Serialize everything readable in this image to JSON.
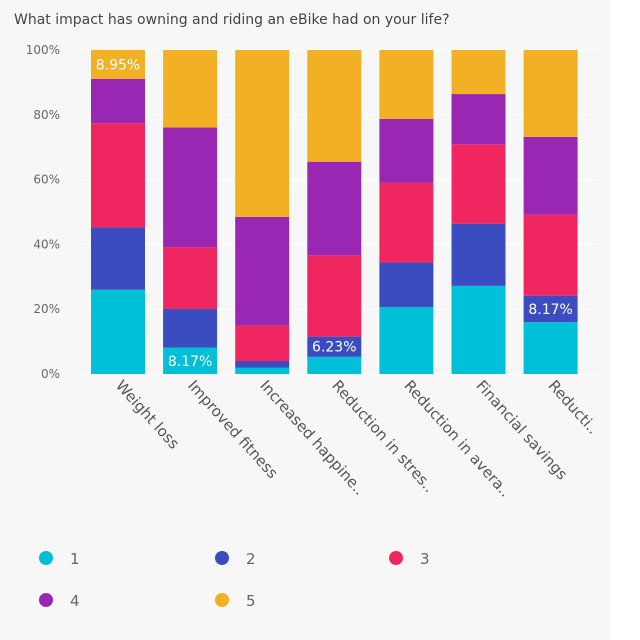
{
  "chart_data": {
    "type": "bar",
    "stacked": true,
    "title": "What impact has owning and riding an eBike had on your life?",
    "categories": [
      "Weight loss",
      "Improved fitness",
      "Increased happine..",
      "Reduction in stres..",
      "Reduction in avera..",
      "Financial savings",
      "Reducti.."
    ],
    "series": [
      {
        "name": "1",
        "color": "#00c0d8",
        "values": [
          26.0,
          8.17,
          2.0,
          5.3,
          20.7,
          27.2,
          16.0
        ]
      },
      {
        "name": "2",
        "color": "#3a4cc0",
        "values": [
          19.2,
          11.9,
          2.0,
          6.23,
          13.7,
          19.2,
          8.17
        ]
      },
      {
        "name": "3",
        "color": "#f02660",
        "values": [
          32.2,
          19.1,
          11.0,
          25.1,
          24.6,
          24.5,
          25.0
        ]
      },
      {
        "name": "4",
        "color": "#9a27b3",
        "values": [
          13.7,
          36.9,
          33.5,
          28.9,
          19.7,
          15.5,
          24.0
        ]
      },
      {
        "name": "5",
        "color": "#f2b124",
        "values": [
          8.95,
          23.93,
          51.5,
          34.47,
          21.3,
          13.6,
          26.83
        ]
      }
    ],
    "data_labels": [
      {
        "category": 0,
        "series": 4,
        "text": "8.95%"
      },
      {
        "category": 1,
        "series": 0,
        "text": "8.17%"
      },
      {
        "category": 3,
        "series": 1,
        "text": "6.23%"
      },
      {
        "category": 6,
        "series": 1,
        "text": "8.17%"
      }
    ],
    "y_ticks": [
      0,
      20,
      40,
      60,
      80,
      100
    ],
    "y_tick_labels": [
      "0%",
      "20%",
      "40%",
      "60%",
      "80%",
      "100%"
    ],
    "ylim": [
      0,
      100
    ],
    "xlabel": "",
    "ylabel": "",
    "grid": true,
    "legend_position": "bottom"
  }
}
